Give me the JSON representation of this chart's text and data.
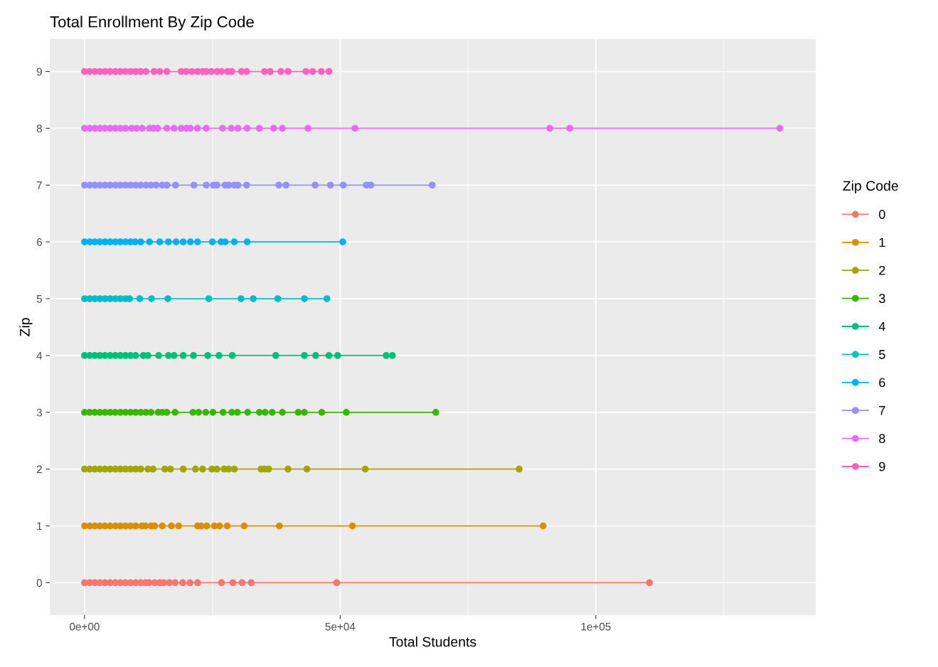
{
  "chart_data": {
    "type": "line",
    "title": "Total Enrollment By Zip Code",
    "xlabel": "Total Students",
    "ylabel": "Zip",
    "legend_title": "Zip Code",
    "legend": "right",
    "grid": true,
    "marker": "circle",
    "line_style": "solid",
    "xlim": [
      -6800,
      143000
    ],
    "ylim": [
      -0.57,
      9.57
    ],
    "xticks": [
      {
        "value": 0,
        "label": "0e+00"
      },
      {
        "value": 25000,
        "label": null
      },
      {
        "value": 50000,
        "label": "5e+04"
      },
      {
        "value": 75000,
        "label": null
      },
      {
        "value": 100000,
        "label": "1e+05"
      },
      {
        "value": 125000,
        "label": null
      }
    ],
    "yticks": [
      0,
      1,
      2,
      3,
      4,
      5,
      6,
      7,
      8,
      9
    ],
    "series": [
      {
        "name": "0",
        "color": "#f8766d",
        "x": [
          0,
          1000,
          2000,
          3000,
          4000,
          5000,
          6000,
          7000,
          8000,
          9000,
          10000,
          11000,
          11900,
          12600,
          13700,
          14700,
          15500,
          16600,
          17700,
          19200,
          20600,
          22100,
          26800,
          29000,
          30800,
          32600,
          49300,
          110500
        ],
        "values": [
          0,
          0,
          0,
          0,
          0,
          0,
          0,
          0,
          0,
          0,
          0,
          0,
          0,
          0,
          0,
          0,
          0,
          0,
          0,
          0,
          0,
          0,
          0,
          0,
          0,
          0,
          0,
          0
        ]
      },
      {
        "name": "1",
        "color": "#d89000",
        "x": [
          0,
          1000,
          2000,
          3000,
          4000,
          5000,
          6000,
          7000,
          8000,
          9000,
          10000,
          11200,
          11900,
          13000,
          13700,
          15200,
          17000,
          18400,
          22100,
          22800,
          23900,
          25400,
          26400,
          27900,
          31200,
          38100,
          52400,
          89700
        ],
        "values": [
          1,
          1,
          1,
          1,
          1,
          1,
          1,
          1,
          1,
          1,
          1,
          1,
          1,
          1,
          1,
          1,
          1,
          1,
          1,
          1,
          1,
          1,
          1,
          1,
          1,
          1,
          1,
          1
        ]
      },
      {
        "name": "2",
        "color": "#a3a500",
        "x": [
          0,
          1000,
          2000,
          3000,
          4000,
          5000,
          6000,
          7000,
          8000,
          9000,
          10000,
          11000,
          12400,
          13400,
          15700,
          16800,
          19300,
          21700,
          23100,
          24900,
          25900,
          27300,
          28200,
          29300,
          34500,
          35200,
          36000,
          39800,
          43500,
          54900,
          85000
        ],
        "values": [
          2,
          2,
          2,
          2,
          2,
          2,
          2,
          2,
          2,
          2,
          2,
          2,
          2,
          2,
          2,
          2,
          2,
          2,
          2,
          2,
          2,
          2,
          2,
          2,
          2,
          2,
          2,
          2,
          2,
          2,
          2
        ]
      },
      {
        "name": "3",
        "color": "#39b600",
        "x": [
          0,
          1000,
          2000,
          3000,
          4000,
          5000,
          6000,
          7000,
          8000,
          9000,
          10000,
          11000,
          12000,
          13000,
          14400,
          15200,
          16100,
          17700,
          21200,
          22300,
          23700,
          25100,
          27100,
          28800,
          29900,
          31900,
          34200,
          35300,
          36700,
          38700,
          41800,
          43000,
          46400,
          51200,
          68700
        ],
        "values": [
          3,
          3,
          3,
          3,
          3,
          3,
          3,
          3,
          3,
          3,
          3,
          3,
          3,
          3,
          3,
          3,
          3,
          3,
          3,
          3,
          3,
          3,
          3,
          3,
          3,
          3,
          3,
          3,
          3,
          3,
          3,
          3,
          3,
          3,
          3
        ]
      },
      {
        "name": "4",
        "color": "#00bf7d",
        "x": [
          0,
          1000,
          2000,
          3000,
          4000,
          5000,
          6000,
          7000,
          8000,
          9000,
          10000,
          11500,
          12400,
          14500,
          16400,
          17500,
          19300,
          21300,
          24100,
          26300,
          28900,
          37400,
          43000,
          45200,
          47800,
          49500,
          59000,
          60200
        ],
        "values": [
          4,
          4,
          4,
          4,
          4,
          4,
          4,
          4,
          4,
          4,
          4,
          4,
          4,
          4,
          4,
          4,
          4,
          4,
          4,
          4,
          4,
          4,
          4,
          4,
          4,
          4,
          4,
          4
        ]
      },
      {
        "name": "5",
        "color": "#00bfc4",
        "x": [
          0,
          1000,
          2000,
          3000,
          4000,
          5000,
          6000,
          7000,
          8000,
          8800,
          10800,
          13100,
          16300,
          24300,
          30600,
          33000,
          37800,
          43000,
          47400
        ],
        "values": [
          5,
          5,
          5,
          5,
          5,
          5,
          5,
          5,
          5,
          5,
          5,
          5,
          5,
          5,
          5,
          5,
          5,
          5,
          5
        ]
      },
      {
        "name": "6",
        "color": "#00b0f6",
        "x": [
          0,
          1000,
          2000,
          3000,
          4000,
          5000,
          6000,
          7000,
          8000,
          9000,
          9900,
          11000,
          12700,
          14700,
          16400,
          17900,
          19300,
          20700,
          22100,
          25000,
          26700,
          27500,
          29300,
          31800,
          50500
        ],
        "values": [
          6,
          6,
          6,
          6,
          6,
          6,
          6,
          6,
          6,
          6,
          6,
          6,
          6,
          6,
          6,
          6,
          6,
          6,
          6,
          6,
          6,
          6,
          6,
          6,
          6
        ]
      },
      {
        "name": "7",
        "color": "#9590ff",
        "x": [
          0,
          1000,
          2000,
          3000,
          4000,
          5000,
          6000,
          7000,
          8000,
          9000,
          10000,
          11000,
          12000,
          13000,
          14000,
          15200,
          16100,
          17800,
          21400,
          23800,
          25200,
          25900,
          27500,
          28200,
          29300,
          30000,
          31700,
          38000,
          39400,
          45100,
          48100,
          50600,
          55100,
          56000,
          68000
        ],
        "values": [
          7,
          7,
          7,
          7,
          7,
          7,
          7,
          7,
          7,
          7,
          7,
          7,
          7,
          7,
          7,
          7,
          7,
          7,
          7,
          7,
          7,
          7,
          7,
          7,
          7,
          7,
          7,
          7,
          7,
          7,
          7,
          7,
          7,
          7,
          7
        ]
      },
      {
        "name": "8",
        "color": "#e76bf3",
        "x": [
          0,
          1000,
          2000,
          3000,
          4000,
          5000,
          6000,
          7000,
          8000,
          9200,
          10200,
          11300,
          12700,
          13500,
          14300,
          16100,
          17500,
          18900,
          19900,
          20700,
          22100,
          23800,
          27000,
          28700,
          30000,
          31800,
          34200,
          37000,
          38700,
          43700,
          52900,
          91000,
          94900,
          136000
        ],
        "values": [
          8,
          8,
          8,
          8,
          8,
          8,
          8,
          8,
          8,
          8,
          8,
          8,
          8,
          8,
          8,
          8,
          8,
          8,
          8,
          8,
          8,
          8,
          8,
          8,
          8,
          8,
          8,
          8,
          8,
          8,
          8,
          8,
          8,
          8
        ]
      },
      {
        "name": "9",
        "color": "#ff62bc",
        "x": [
          0,
          1000,
          2000,
          3000,
          4000,
          5000,
          6000,
          7000,
          8000,
          9000,
          10000,
          11000,
          12000,
          13600,
          14700,
          16100,
          18900,
          19900,
          21000,
          22100,
          23100,
          23800,
          24800,
          25900,
          26800,
          28000,
          28800,
          30700,
          31700,
          35200,
          36300,
          38400,
          39800,
          43300,
          44600,
          46300,
          47800
        ],
        "values": [
          9,
          9,
          9,
          9,
          9,
          9,
          9,
          9,
          9,
          9,
          9,
          9,
          9,
          9,
          9,
          9,
          9,
          9,
          9,
          9,
          9,
          9,
          9,
          9,
          9,
          9,
          9,
          9,
          9,
          9,
          9,
          9,
          9,
          9,
          9,
          9,
          9
        ]
      }
    ]
  }
}
